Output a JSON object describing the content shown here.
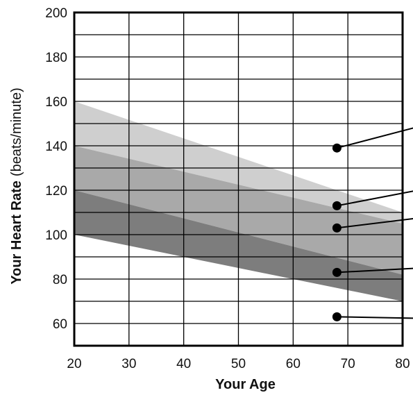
{
  "chart_data": {
    "type": "area",
    "xlabel": "Your Age",
    "ylabel_main": "Your Heart Rate",
    "ylabel_unit": "(beats/minute)",
    "xlim": [
      20,
      80
    ],
    "ylim": [
      50,
      200
    ],
    "x_ticks": [
      20,
      30,
      40,
      50,
      60,
      70,
      80
    ],
    "y_ticks": [
      60,
      80,
      100,
      120,
      140,
      160,
      180,
      200
    ],
    "x_grid": [
      20,
      30,
      40,
      50,
      60,
      70,
      80
    ],
    "y_grid": [
      50,
      60,
      70,
      80,
      90,
      100,
      110,
      120,
      130,
      140,
      150,
      160,
      170,
      180,
      190,
      200
    ],
    "grid": true,
    "legend": "none",
    "bands": [
      {
        "lower": [
          [
            20,
            140
          ],
          [
            80,
            105
          ]
        ],
        "upper": [
          [
            20,
            160
          ],
          [
            80,
            110
          ]
        ],
        "color": "#cfcfcf"
      },
      {
        "lower": [
          [
            20,
            120
          ],
          [
            80,
            82
          ]
        ],
        "upper": [
          [
            20,
            140
          ],
          [
            80,
            105
          ]
        ],
        "color": "#a9a9a9"
      },
      {
        "lower": [
          [
            20,
            100
          ],
          [
            80,
            70
          ]
        ],
        "upper": [
          [
            20,
            120
          ],
          [
            80,
            82
          ]
        ],
        "color": "#7d7d7d"
      }
    ],
    "callouts": [
      {
        "x": 68,
        "y": 139
      },
      {
        "x": 68,
        "y": 113
      },
      {
        "x": 68,
        "y": 103
      },
      {
        "x": 68,
        "y": 83
      },
      {
        "x": 68,
        "y": 63
      }
    ]
  }
}
